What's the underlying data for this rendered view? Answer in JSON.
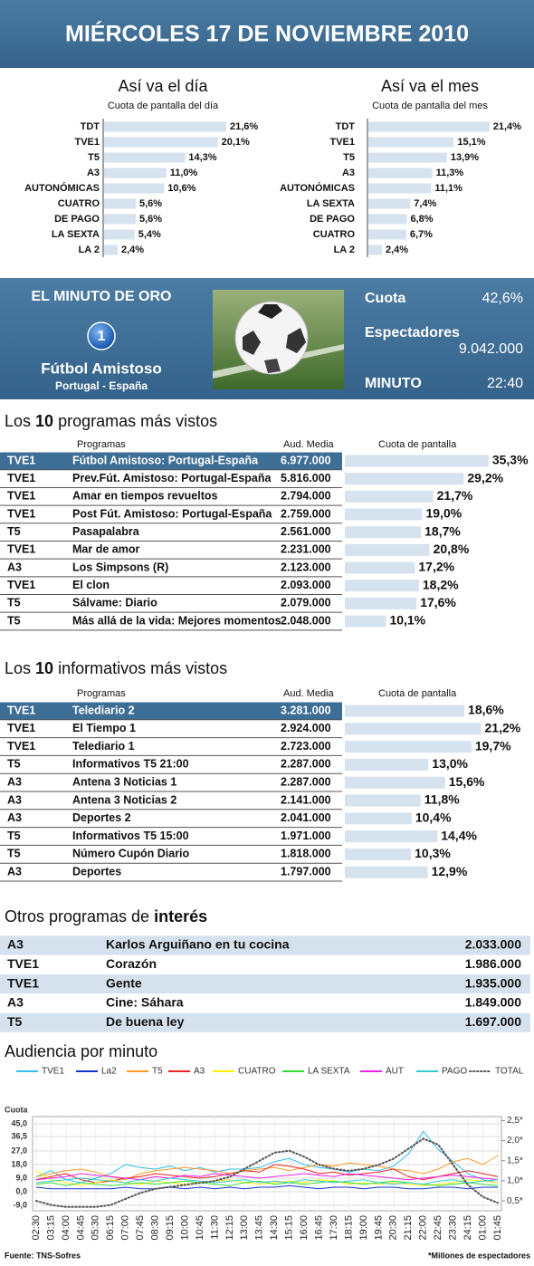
{
  "header": {
    "title": "MIÉRCOLES 17 DE NOVIEMBRE 2010"
  },
  "chart_data": [
    {
      "type": "bar",
      "title": "Así va el día",
      "subtitle": "Cuota de pantalla del día",
      "color": "#d6e2ee",
      "categories": [
        "TDT",
        "TVE1",
        "T5",
        "A3",
        "AUTONÓMICAS",
        "CUATRO",
        "DE PAGO",
        "LA SEXTA",
        "LA 2"
      ],
      "values": [
        21.6,
        20.1,
        14.3,
        11.0,
        10.6,
        5.6,
        5.6,
        5.4,
        2.4
      ],
      "value_labels": [
        "21,6%",
        "20,1%",
        "14,3%",
        "11,0%",
        "10,6%",
        "5,6%",
        "5,6%",
        "5,4%",
        "2,4%"
      ]
    },
    {
      "type": "bar",
      "title": "Así va el mes",
      "subtitle": "Cuota de pantalla del mes",
      "color": "#d6e2ee",
      "categories": [
        "TDT",
        "TVE1",
        "T5",
        "A3",
        "AUTONÓMICAS",
        "LA SEXTA",
        "DE PAGO",
        "CUATRO",
        "LA 2"
      ],
      "values": [
        21.4,
        15.1,
        13.9,
        11.3,
        11.1,
        7.4,
        6.8,
        6.7,
        2.4
      ],
      "value_labels": [
        "21,4%",
        "15,1%",
        "13,9%",
        "11,3%",
        "11,1%",
        "7,4%",
        "6,8%",
        "6,7%",
        "2,4%"
      ]
    },
    {
      "type": "line",
      "title": "Audiencia por minuto",
      "y_label": "Cuota",
      "grid": true,
      "categories": [
        "02:30",
        "03:15",
        "04:00",
        "04:45",
        "05:30",
        "06:15",
        "07:00",
        "07:45",
        "08:30",
        "09:15",
        "10:00",
        "10:45",
        "11:30",
        "12:15",
        "13:00",
        "13:45",
        "14:30",
        "15:15",
        "16:00",
        "16:45",
        "17:30",
        "18:15",
        "19:00",
        "19:45",
        "20:30",
        "21:15",
        "22:00",
        "22:45",
        "23:30",
        "24:15",
        "01:00",
        "01:45"
      ],
      "ylim": [
        -9,
        45
      ],
      "yticks": [
        {
          "value": 45,
          "label": "45,0"
        },
        {
          "value": 36.5,
          "label": "36,5"
        },
        {
          "value": 27,
          "label": "27,0"
        },
        {
          "value": 18,
          "label": "18,0"
        },
        {
          "value": 9,
          "label": "9,0"
        },
        {
          "value": 0,
          "label": "0,0"
        },
        {
          "value": -9,
          "label": "-9,0"
        }
      ],
      "y2lim": [
        0.3,
        2.6
      ],
      "y2ticks": [
        {
          "value": 2.5,
          "label": "2,5*"
        },
        {
          "value": 2.0,
          "label": "2,0*"
        },
        {
          "value": 1.5,
          "label": "1,5*"
        },
        {
          "value": 1.0,
          "label": "1,0*"
        },
        {
          "value": 0.5,
          "label": "0,5*"
        }
      ],
      "series": [
        {
          "name": "TVE1",
          "color": "#33bbee",
          "values": [
            10,
            14,
            8,
            6,
            9,
            12,
            18,
            16,
            15,
            17,
            14,
            16,
            13,
            15,
            15,
            16,
            20,
            22,
            18,
            16,
            15,
            13,
            15,
            14,
            17,
            25,
            40,
            28,
            20,
            12,
            8,
            6
          ]
        },
        {
          "name": "La2",
          "color": "#1133cc",
          "values": [
            3,
            2,
            2,
            2,
            2,
            2,
            3,
            2,
            2,
            3,
            2,
            3,
            2,
            3,
            2,
            3,
            3,
            4,
            3,
            2,
            3,
            3,
            2,
            3,
            3,
            2,
            2,
            3,
            3,
            2,
            3,
            3
          ]
        },
        {
          "name": "T5",
          "color": "#ff9922",
          "values": [
            10,
            12,
            14,
            15,
            13,
            10,
            8,
            12,
            14,
            15,
            16,
            15,
            14,
            12,
            14,
            15,
            16,
            14,
            16,
            18,
            17,
            19,
            18,
            17,
            15,
            14,
            12,
            15,
            20,
            22,
            18,
            24
          ]
        },
        {
          "name": "A3",
          "color": "#ee2222",
          "values": [
            8,
            10,
            12,
            8,
            6,
            7,
            9,
            10,
            12,
            11,
            10,
            9,
            10,
            12,
            14,
            13,
            18,
            17,
            15,
            12,
            13,
            11,
            12,
            13,
            15,
            10,
            8,
            10,
            12,
            14,
            12,
            10
          ]
        },
        {
          "name": "CUATRO",
          "color": "#ffee00",
          "values": [
            14,
            8,
            6,
            4,
            6,
            8,
            6,
            5,
            7,
            6,
            5,
            6,
            7,
            8,
            6,
            5,
            6,
            7,
            6,
            8,
            7,
            5,
            6,
            5,
            6,
            5,
            4,
            5,
            6,
            8,
            7,
            6
          ]
        },
        {
          "name": "LA SEXTA",
          "color": "#33dd33",
          "values": [
            5,
            6,
            4,
            6,
            5,
            4,
            5,
            6,
            5,
            6,
            7,
            6,
            5,
            4,
            6,
            7,
            5,
            6,
            5,
            6,
            7,
            6,
            5,
            6,
            7,
            6,
            5,
            4,
            5,
            6,
            5,
            4
          ]
        },
        {
          "name": "AUT",
          "color": "#ee22ee",
          "values": [
            8,
            9,
            10,
            12,
            11,
            10,
            9,
            8,
            10,
            9,
            11,
            10,
            12,
            11,
            10,
            9,
            10,
            11,
            12,
            11,
            10,
            12,
            11,
            10,
            9,
            8,
            9,
            10,
            11,
            10,
            9,
            8
          ]
        },
        {
          "name": "PAGO",
          "color": "#33cccc",
          "values": [
            6,
            7,
            8,
            9,
            8,
            7,
            6,
            8,
            7,
            9,
            8,
            7,
            6,
            7,
            8,
            6,
            7,
            6,
            8,
            7,
            6,
            7,
            8,
            6,
            5,
            6,
            5,
            7,
            8,
            6,
            7,
            8
          ]
        },
        {
          "name": "TOTAL",
          "color": "#555555",
          "axis": "y2",
          "values": [
            0.5,
            0.4,
            0.35,
            0.35,
            0.35,
            0.4,
            0.55,
            0.7,
            0.8,
            0.85,
            0.9,
            0.95,
            1.0,
            1.1,
            1.3,
            1.5,
            1.7,
            1.75,
            1.6,
            1.4,
            1.3,
            1.25,
            1.3,
            1.4,
            1.55,
            1.8,
            2.05,
            1.9,
            1.4,
            0.9,
            0.6,
            0.45
          ]
        }
      ]
    }
  ],
  "golden_minute": {
    "title": "EL MINUTO DE ORO",
    "channel_logo": "1",
    "program": "Fútbol Amistoso",
    "match": "Portugal - España",
    "share_label": "Cuota",
    "share": "42,6%",
    "viewers_label": "Espectadores",
    "viewers": "9.042.000",
    "minute_label": "MINUTO",
    "minute": "22:40"
  },
  "top_programs": {
    "title": [
      "Los",
      "10",
      "programas más vistos"
    ],
    "columns": [
      "Programas",
      "Aud. Media",
      "Cuota de pantalla"
    ],
    "rows": [
      {
        "channel": "TVE1",
        "program": "Fútbol Amistoso: Portugal-España",
        "audience": "6.977.000",
        "share": 35.3,
        "share_label": "35,3%"
      },
      {
        "channel": "TVE1",
        "program": "Prev.Fút. Amistoso: Portugal-España",
        "audience": "5.816.000",
        "share": 29.2,
        "share_label": "29,2%"
      },
      {
        "channel": "TVE1",
        "program": "Amar en tiempos revueltos",
        "audience": "2.794.000",
        "share": 21.7,
        "share_label": "21,7%"
      },
      {
        "channel": "TVE1",
        "program": "Post Fút. Amistoso: Portugal-España",
        "audience": "2.759.000",
        "share": 19.0,
        "share_label": "19,0%"
      },
      {
        "channel": "T5",
        "program": "Pasapalabra",
        "audience": "2.561.000",
        "share": 18.7,
        "share_label": "18,7%"
      },
      {
        "channel": "TVE1",
        "program": "Mar de amor",
        "audience": "2.231.000",
        "share": 20.8,
        "share_label": "20,8%"
      },
      {
        "channel": "A3",
        "program": "Los Simpsons (R)",
        "audience": "2.123.000",
        "share": 17.2,
        "share_label": "17,2%"
      },
      {
        "channel": "TVE1",
        "program": "El clon",
        "audience": "2.093.000",
        "share": 18.2,
        "share_label": "18,2%"
      },
      {
        "channel": "T5",
        "program": "Sálvame: Diario",
        "audience": "2.079.000",
        "share": 17.6,
        "share_label": "17,6%"
      },
      {
        "channel": "T5",
        "program": "Más allá de la vida: Mejores momentos",
        "audience": "2.048.000",
        "share": 10.1,
        "share_label": "10,1%"
      }
    ]
  },
  "top_news": {
    "title": [
      "Los",
      "10",
      "informativos más vistos"
    ],
    "columns": [
      "Programas",
      "Aud. Media",
      "Cuota de pantalla"
    ],
    "rows": [
      {
        "channel": "TVE1",
        "program": "Telediario 2",
        "audience": "3.281.000",
        "share": 18.6,
        "share_label": "18,6%"
      },
      {
        "channel": "TVE1",
        "program": "El Tiempo 1",
        "audience": "2.924.000",
        "share": 21.2,
        "share_label": "21,2%"
      },
      {
        "channel": "TVE1",
        "program": "Telediario 1",
        "audience": "2.723.000",
        "share": 19.7,
        "share_label": "19,7%"
      },
      {
        "channel": "T5",
        "program": "Informativos T5 21:00",
        "audience": "2.287.000",
        "share": 13.0,
        "share_label": "13,0%"
      },
      {
        "channel": "A3",
        "program": "Antena 3 Noticias 1",
        "audience": "2.287.000",
        "share": 15.6,
        "share_label": "15,6%"
      },
      {
        "channel": "A3",
        "program": "Antena 3 Noticias 2",
        "audience": "2.141.000",
        "share": 11.8,
        "share_label": "11,8%"
      },
      {
        "channel": "A3",
        "program": "Deportes 2",
        "audience": "2.041.000",
        "share": 10.4,
        "share_label": "10,4%"
      },
      {
        "channel": "T5",
        "program": "Informativos T5 15:00",
        "audience": "1.971.000",
        "share": 14.4,
        "share_label": "14,4%"
      },
      {
        "channel": "T5",
        "program": "Número Cupón Diario",
        "audience": "1.818.000",
        "share": 10.3,
        "share_label": "10,3%"
      },
      {
        "channel": "A3",
        "program": "Deportes",
        "audience": "1.797.000",
        "share": 12.9,
        "share_label": "12,9%"
      }
    ]
  },
  "other_programs": {
    "title": [
      "Otros programas de",
      "interés"
    ],
    "rows": [
      {
        "channel": "A3",
        "program": "Karlos Arguiñano en tu cocina",
        "audience": "2.033.000"
      },
      {
        "channel": "TVE1",
        "program": "Corazón",
        "audience": "1.986.000"
      },
      {
        "channel": "TVE1",
        "program": "Gente",
        "audience": "1.935.000"
      },
      {
        "channel": "A3",
        "program": "Cine: Sáhara",
        "audience": "1.849.000"
      },
      {
        "channel": "T5",
        "program": "De buena ley",
        "audience": "1.697.000"
      }
    ]
  },
  "footer": {
    "source": "Fuente: TNS-Sofres",
    "note": "*Millones de espectadores"
  }
}
